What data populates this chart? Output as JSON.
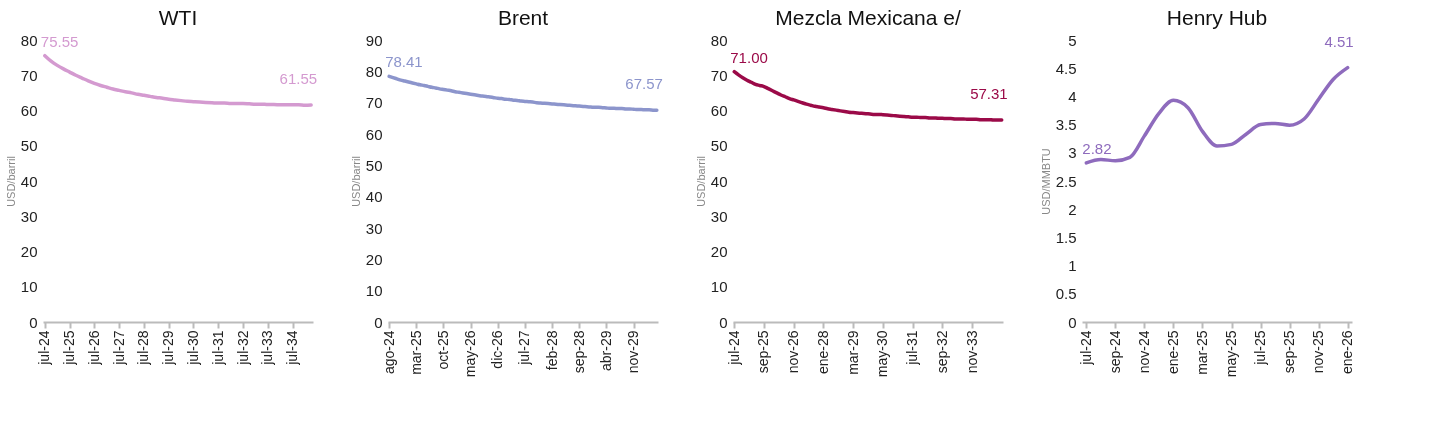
{
  "chart_data": [
    {
      "type": "line",
      "title": "WTI",
      "ylabel": "USD/barril",
      "color": "#d49ad0",
      "ylim": [
        0,
        80
      ],
      "yticks": [
        0,
        10,
        20,
        30,
        40,
        50,
        60,
        70,
        80
      ],
      "categories": [
        "jul-24",
        null,
        null,
        null,
        "jul-25",
        null,
        null,
        null,
        "jul-26",
        null,
        null,
        null,
        "jul-27",
        null,
        null,
        null,
        "jul-28",
        null,
        null,
        null,
        "jul-29",
        null,
        null,
        null,
        "jul-30",
        null,
        null,
        null,
        "jul-31",
        null,
        null,
        null,
        "jul-32",
        null,
        null,
        null,
        "jul-33",
        null,
        null,
        null,
        "jul-34",
        null,
        null,
        null
      ],
      "values": [
        75.55,
        74.0,
        72.8,
        71.8,
        70.9,
        70.0,
        69.2,
        68.4,
        67.7,
        67.1,
        66.6,
        66.1,
        65.7,
        65.3,
        65.0,
        64.6,
        64.3,
        64.0,
        63.7,
        63.5,
        63.2,
        63.0,
        62.8,
        62.6,
        62.5,
        62.4,
        62.3,
        62.2,
        62.1,
        62.1,
        62.0,
        62.0,
        62.0,
        61.9,
        61.8,
        61.8,
        61.7,
        61.7,
        61.6,
        61.6,
        61.6,
        61.6,
        61.5,
        61.55
      ],
      "value_labels": [
        "75.55",
        null,
        null,
        null,
        null,
        null,
        null,
        null,
        null,
        null,
        null,
        null,
        null,
        null,
        null,
        null,
        null,
        null,
        null,
        null,
        null,
        null,
        null,
        null,
        null,
        null,
        null,
        null,
        null,
        null,
        null,
        null,
        null,
        null,
        null,
        null,
        null,
        null,
        null,
        null,
        null,
        null,
        null,
        "61.55"
      ]
    },
    {
      "type": "line",
      "title": "Brent",
      "ylabel": "USD/barril",
      "color": "#8c95cc",
      "ylim": [
        0,
        90
      ],
      "yticks": [
        0,
        10,
        20,
        30,
        40,
        50,
        60,
        70,
        80,
        90
      ],
      "categories": [
        "ago-24",
        null,
        null,
        null,
        null,
        null,
        null,
        "mar-25",
        null,
        null,
        null,
        null,
        null,
        null,
        "oct-25",
        null,
        null,
        null,
        null,
        null,
        null,
        "may-26",
        null,
        null,
        null,
        null,
        null,
        null,
        "dic-26",
        null,
        null,
        null,
        null,
        null,
        null,
        "jul-27",
        null,
        null,
        null,
        null,
        null,
        null,
        "feb-28",
        null,
        null,
        null,
        null,
        null,
        null,
        "sep-28",
        null,
        null,
        null,
        null,
        null,
        null,
        "abr-29",
        null,
        null,
        null,
        null,
        null,
        null,
        "nov-29",
        null,
        null,
        null,
        null,
        null,
        null
      ],
      "values": [
        78.41,
        78.0,
        77.6,
        77.2,
        76.9,
        76.6,
        76.3,
        76.0,
        75.7,
        75.5,
        75.2,
        74.9,
        74.7,
        74.4,
        74.2,
        74.0,
        73.8,
        73.5,
        73.3,
        73.1,
        72.9,
        72.7,
        72.5,
        72.3,
        72.1,
        72.0,
        71.8,
        71.6,
        71.4,
        71.3,
        71.1,
        71.0,
        70.8,
        70.7,
        70.5,
        70.4,
        70.3,
        70.2,
        70.0,
        69.9,
        69.8,
        69.7,
        69.6,
        69.5,
        69.4,
        69.3,
        69.2,
        69.1,
        69.0,
        68.9,
        68.8,
        68.7,
        68.6,
        68.5,
        68.5,
        68.4,
        68.3,
        68.2,
        68.2,
        68.1,
        68.1,
        68.0,
        68.0,
        67.9,
        67.8,
        67.8,
        67.7,
        67.7,
        67.6,
        67.57
      ],
      "value_labels": [
        "78.41",
        null,
        null,
        null,
        null,
        null,
        null,
        null,
        null,
        null,
        null,
        null,
        null,
        null,
        null,
        null,
        null,
        null,
        null,
        null,
        null,
        null,
        null,
        null,
        null,
        null,
        null,
        null,
        null,
        null,
        null,
        null,
        null,
        null,
        null,
        null,
        null,
        null,
        null,
        null,
        null,
        null,
        null,
        null,
        null,
        null,
        null,
        null,
        null,
        null,
        null,
        null,
        null,
        null,
        null,
        null,
        null,
        null,
        null,
        null,
        null,
        null,
        null,
        null,
        null,
        null,
        null,
        null,
        null,
        "67.57"
      ]
    },
    {
      "type": "line",
      "title": "Mezcla Mexicana e/",
      "ylabel": "USD/barril",
      "color": "#9b0a48",
      "ylim": [
        0,
        80
      ],
      "yticks": [
        0,
        10,
        20,
        30,
        40,
        50,
        60,
        70,
        80
      ],
      "categories": [
        "jul-24",
        null,
        null,
        null,
        null,
        null,
        null,
        "sep-25",
        null,
        null,
        null,
        null,
        null,
        null,
        "nov-26",
        null,
        null,
        null,
        null,
        null,
        null,
        "ene-28",
        null,
        null,
        null,
        null,
        null,
        null,
        "mar-29",
        null,
        null,
        null,
        null,
        null,
        null,
        "may-30",
        null,
        null,
        null,
        null,
        null,
        null,
        "jul-31",
        null,
        null,
        null,
        null,
        null,
        null,
        "sep-32",
        null,
        null,
        null,
        null,
        null,
        null,
        "nov-33",
        null,
        null,
        null,
        null,
        null,
        null,
        null
      ],
      "values": [
        71.0,
        70.1,
        69.3,
        68.6,
        68.0,
        67.4,
        67.1,
        66.8,
        66.2,
        65.6,
        65.0,
        64.4,
        63.9,
        63.4,
        63.0,
        62.6,
        62.2,
        61.8,
        61.5,
        61.2,
        61.0,
        60.8,
        60.5,
        60.3,
        60.1,
        59.9,
        59.7,
        59.5,
        59.4,
        59.3,
        59.2,
        59.1,
        59.0,
        58.9,
        58.9,
        58.8,
        58.7,
        58.6,
        58.5,
        58.4,
        58.3,
        58.2,
        58.1,
        58.1,
        58.0,
        58.0,
        57.9,
        57.9,
        57.8,
        57.8,
        57.7,
        57.7,
        57.6,
        57.6,
        57.6,
        57.5,
        57.5,
        57.5,
        57.4,
        57.4,
        57.4,
        57.3,
        57.3,
        57.31
      ],
      "value_labels": [
        "71.00",
        null,
        null,
        null,
        null,
        null,
        null,
        null,
        null,
        null,
        null,
        null,
        null,
        null,
        null,
        null,
        null,
        null,
        null,
        null,
        null,
        null,
        null,
        null,
        null,
        null,
        null,
        null,
        null,
        null,
        null,
        null,
        null,
        null,
        null,
        null,
        null,
        null,
        null,
        null,
        null,
        null,
        null,
        null,
        null,
        null,
        null,
        null,
        null,
        null,
        null,
        null,
        null,
        null,
        null,
        null,
        null,
        null,
        null,
        null,
        null,
        null,
        null,
        "57.31"
      ]
    },
    {
      "type": "line",
      "title": "Henry Hub",
      "ylabel": "USD/MMBTU",
      "color": "#8e6bbd",
      "ylim": [
        0,
        5
      ],
      "yticks": [
        0,
        0.5,
        1,
        1.5,
        2,
        2.5,
        3,
        3.5,
        4,
        4.5,
        5
      ],
      "categories": [
        "jul-24",
        null,
        "sep-24",
        null,
        "nov-24",
        null,
        "ene-25",
        null,
        "mar-25",
        null,
        "may-25",
        null,
        "jul-25",
        null,
        "sep-25",
        null,
        "nov-25",
        null,
        "ene-26"
      ],
      "values": [
        2.82,
        2.88,
        2.86,
        2.92,
        3.3,
        3.7,
        3.93,
        3.8,
        3.38,
        3.12,
        3.15,
        3.33,
        3.5,
        3.52,
        3.49,
        3.6,
        3.95,
        4.3,
        4.51
      ],
      "value_labels": [
        "2.82",
        null,
        null,
        null,
        null,
        null,
        null,
        null,
        null,
        null,
        null,
        null,
        null,
        null,
        null,
        null,
        null,
        null,
        "4.51"
      ]
    }
  ]
}
